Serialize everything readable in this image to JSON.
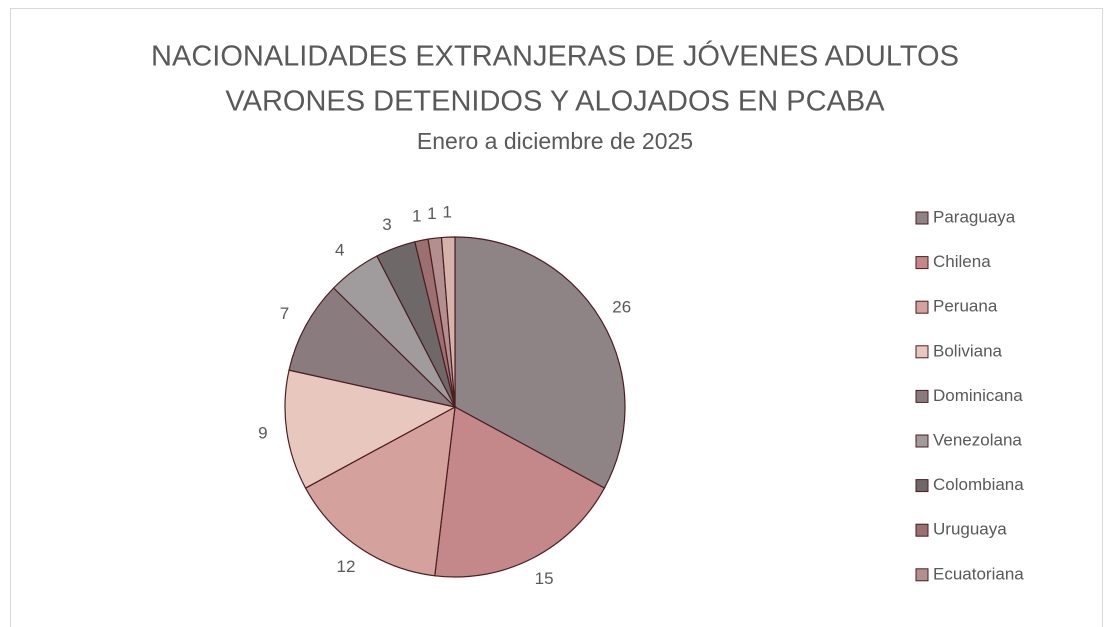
{
  "chart_data": {
    "type": "pie",
    "title": [
      "NACIONALIDADES EXTRANJERAS DE JÓVENES ADULTOS",
      "VARONES DETENIDOS Y ALOJADOS EN PCABA"
    ],
    "subtitle": "Enero a diciembre de 2025",
    "categories": [
      "Paraguaya",
      "Chilena",
      "Peruana",
      "Boliviana",
      "Dominicana",
      "Venezolana",
      "Colombiana",
      "Uruguaya",
      "Ecuatoriana",
      null
    ],
    "values": [
      26,
      15,
      12,
      9,
      7,
      4,
      3,
      1,
      1,
      1
    ],
    "colors": [
      "#8e8486",
      "#c4878a",
      "#d4a19d",
      "#e8c7bf",
      "#8a7c7e",
      "#a09c9d",
      "#6f6869",
      "#9c6f71",
      "#b48f8f",
      "#d6b3aa"
    ],
    "legend": "right"
  }
}
